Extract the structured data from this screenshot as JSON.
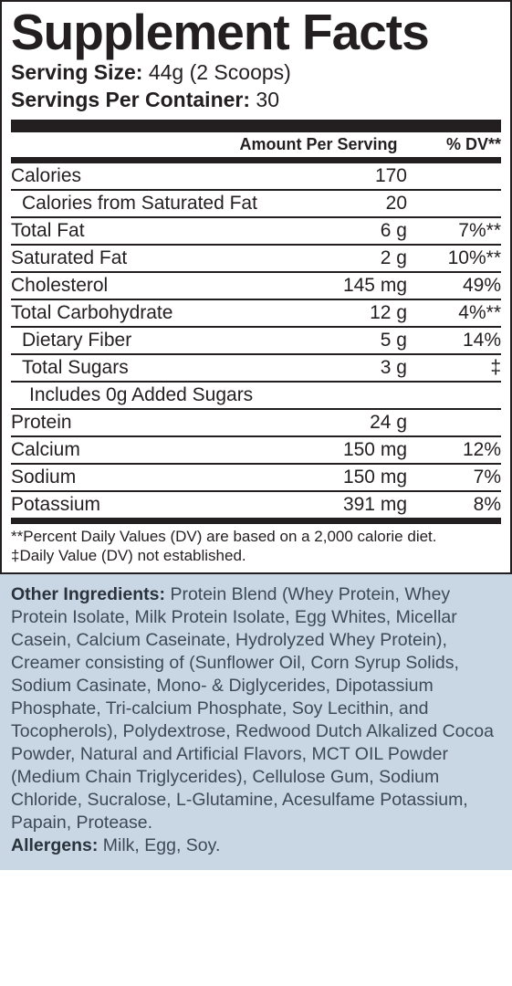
{
  "title": "Supplement Facts",
  "serving": {
    "size_label": "Serving Size:",
    "size_value": " 44g (2 Scoops)",
    "per_label": "Servings Per Container:",
    "per_value": "  30"
  },
  "headers": {
    "amount": "Amount Per Serving",
    "dv": "% DV**"
  },
  "rows": [
    {
      "name": "Calories",
      "amount": "170",
      "dv": "",
      "indent": 0,
      "border": false
    },
    {
      "name": "Calories from Saturated Fat",
      "amount": "20",
      "dv": "",
      "indent": 1,
      "border": true
    },
    {
      "name": "Total Fat",
      "amount": "6 g",
      "dv": "7%**",
      "indent": 0,
      "border": true
    },
    {
      "name": "Saturated Fat",
      "amount": "2 g",
      "dv": "10%**",
      "indent": 0,
      "border": true
    },
    {
      "name": "Cholesterol",
      "amount": "145 mg",
      "dv": "49%",
      "indent": 0,
      "border": true
    },
    {
      "name": "Total Carbohydrate",
      "amount": "12 g",
      "dv": "4%**",
      "indent": 0,
      "border": true
    },
    {
      "name": "Dietary Fiber",
      "amount": "5 g",
      "dv": "14%",
      "indent": 1,
      "border": true
    },
    {
      "name": "Total Sugars",
      "amount": "3 g",
      "dv": "‡",
      "indent": 1,
      "border": true
    },
    {
      "name": "Includes 0g Added Sugars",
      "amount": "",
      "dv": "",
      "indent": 2,
      "border": true
    },
    {
      "name": "Protein",
      "amount": "24 g",
      "dv": "",
      "indent": 0,
      "border": true
    },
    {
      "name": "Calcium",
      "amount": "150 mg",
      "dv": "12%",
      "indent": 0,
      "border": true
    },
    {
      "name": "Sodium",
      "amount": "150 mg",
      "dv": "7%",
      "indent": 0,
      "border": true
    },
    {
      "name": "Potassium",
      "amount": "391 mg",
      "dv": "8%",
      "indent": 0,
      "border": true
    }
  ],
  "footnotes": {
    "line1": "**Percent Daily Values (DV) are based on a 2,000 calorie diet.",
    "line2": "‡Daily Value (DV) not established."
  },
  "other": {
    "label": "Other Ingredients:",
    "text": " Protein Blend (Whey Protein, Whey Protein Isolate, Milk Protein Isolate, Egg Whites, Micellar Casein, Calcium Caseinate, Hydrolyzed Whey Protein), Creamer consisting of (Sunflower Oil, Corn Syrup Solids, Sodium Casinate, Mono- & Diglycerides, Dipotassium Phosphate, Tri-calcium Phosphate, Soy Lecithin, and Tocopherols), Polydextrose, Redwood Dutch Alkalized Cocoa Powder, Natural and Artificial Flavors, MCT OIL Powder (Medium Chain Triglycerides), Cellulose Gum, Sodium Chloride, Sucralose, L-Glutamine, Acesulfame Potassium, Papain, Protease."
  },
  "allergens": {
    "label": "Allergens:",
    "text": " Milk, Egg, Soy."
  }
}
